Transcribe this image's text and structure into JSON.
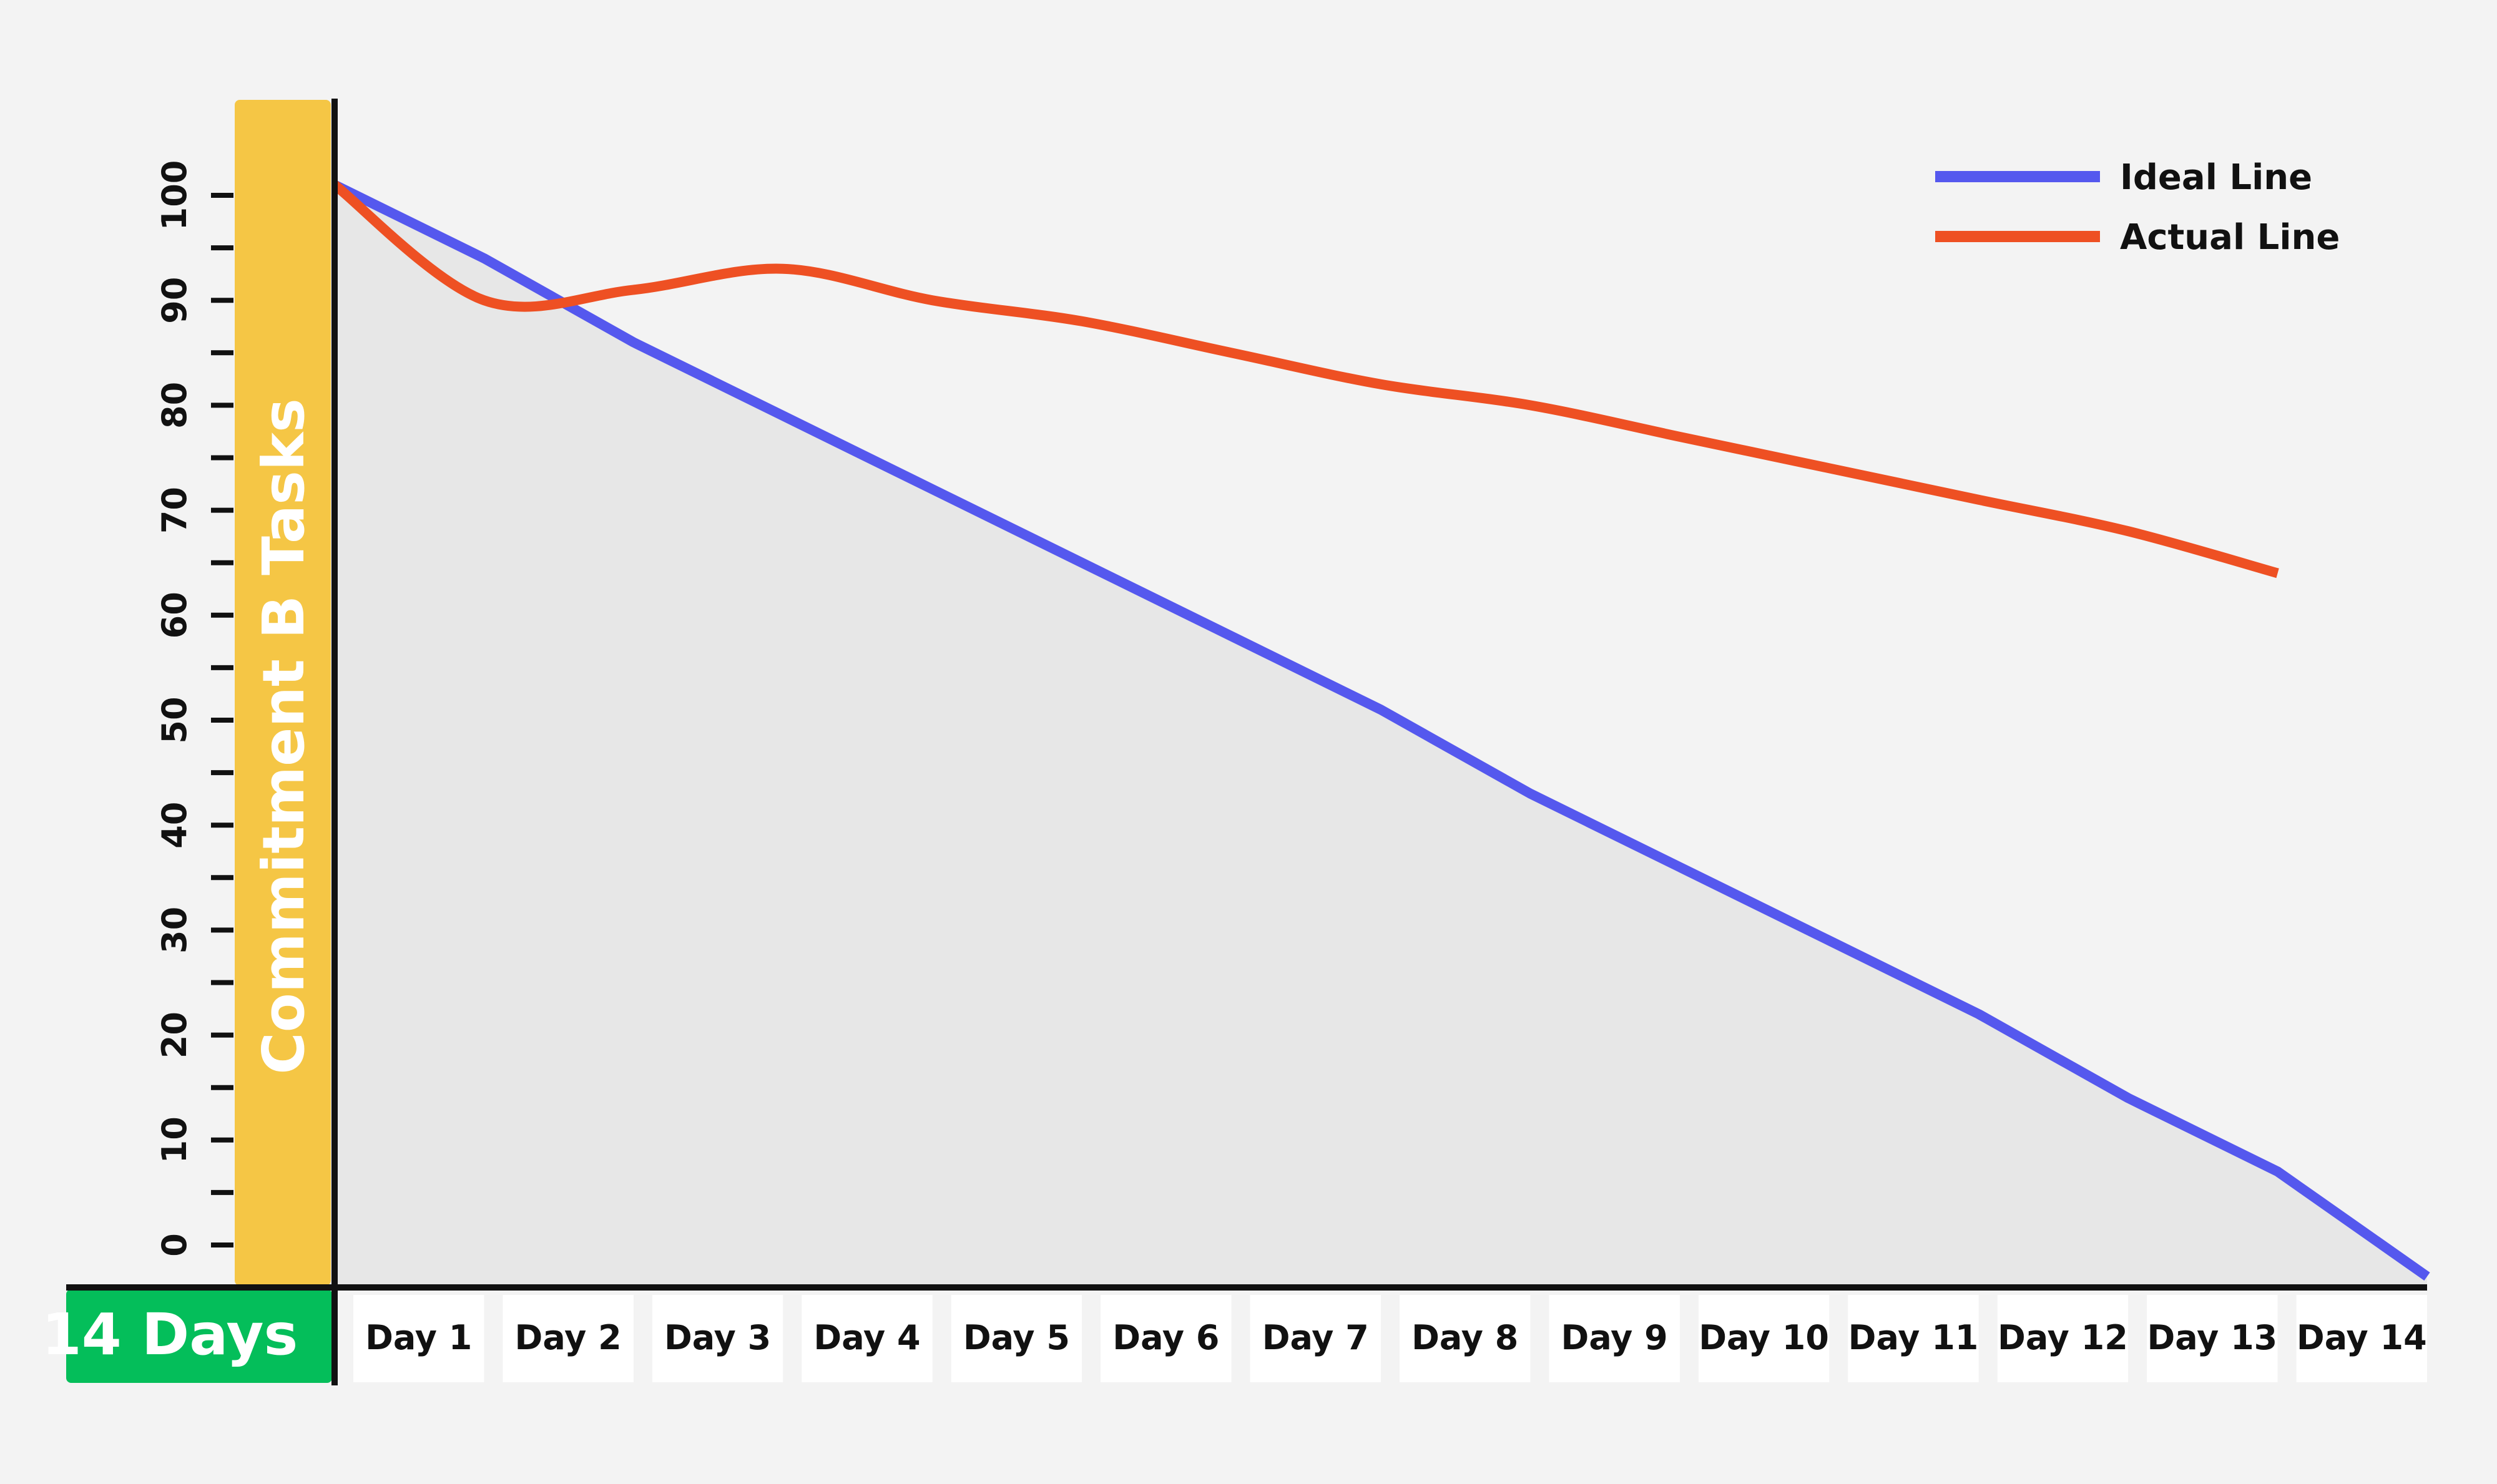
{
  "chart_data": {
    "type": "line",
    "ylabel": "Commitment B Tasks",
    "xlabel": "14 Days",
    "ylim": [
      0,
      100
    ],
    "yticks": [
      0,
      10,
      20,
      30,
      40,
      50,
      60,
      70,
      80,
      90,
      100
    ],
    "categories": [
      "Day 1",
      "Day 2",
      "Day 3",
      "Day 4",
      "Day 5",
      "Day 6",
      "Day 7",
      "Day 8",
      "Day 9",
      "Day 10",
      "Day 11",
      "Day 12",
      "Day 13",
      "Day 14"
    ],
    "x": [
      0,
      1,
      2,
      3,
      4,
      5,
      6,
      7,
      8,
      9,
      10,
      11,
      12,
      13,
      14
    ],
    "series": [
      {
        "name": "Ideal Line",
        "color": "#5558ee",
        "values": [
          101,
          94,
          86,
          79,
          72,
          65,
          58,
          51,
          43,
          36,
          29,
          22,
          14,
          7,
          -3
        ]
      },
      {
        "name": "Actual Line",
        "color": "#ee5023",
        "values": [
          101,
          90,
          91,
          93,
          90,
          88,
          85,
          82,
          80,
          77,
          74,
          71,
          68,
          64,
          null
        ]
      }
    ],
    "legend": "top-right",
    "grid": false,
    "colors": {
      "background": "#f3f3f3",
      "area_fill": "#e7e7e7",
      "y_band": "#f5c645",
      "x_badge": "#04be5a",
      "axis": "#111111",
      "label_box": "#ffffff"
    }
  }
}
